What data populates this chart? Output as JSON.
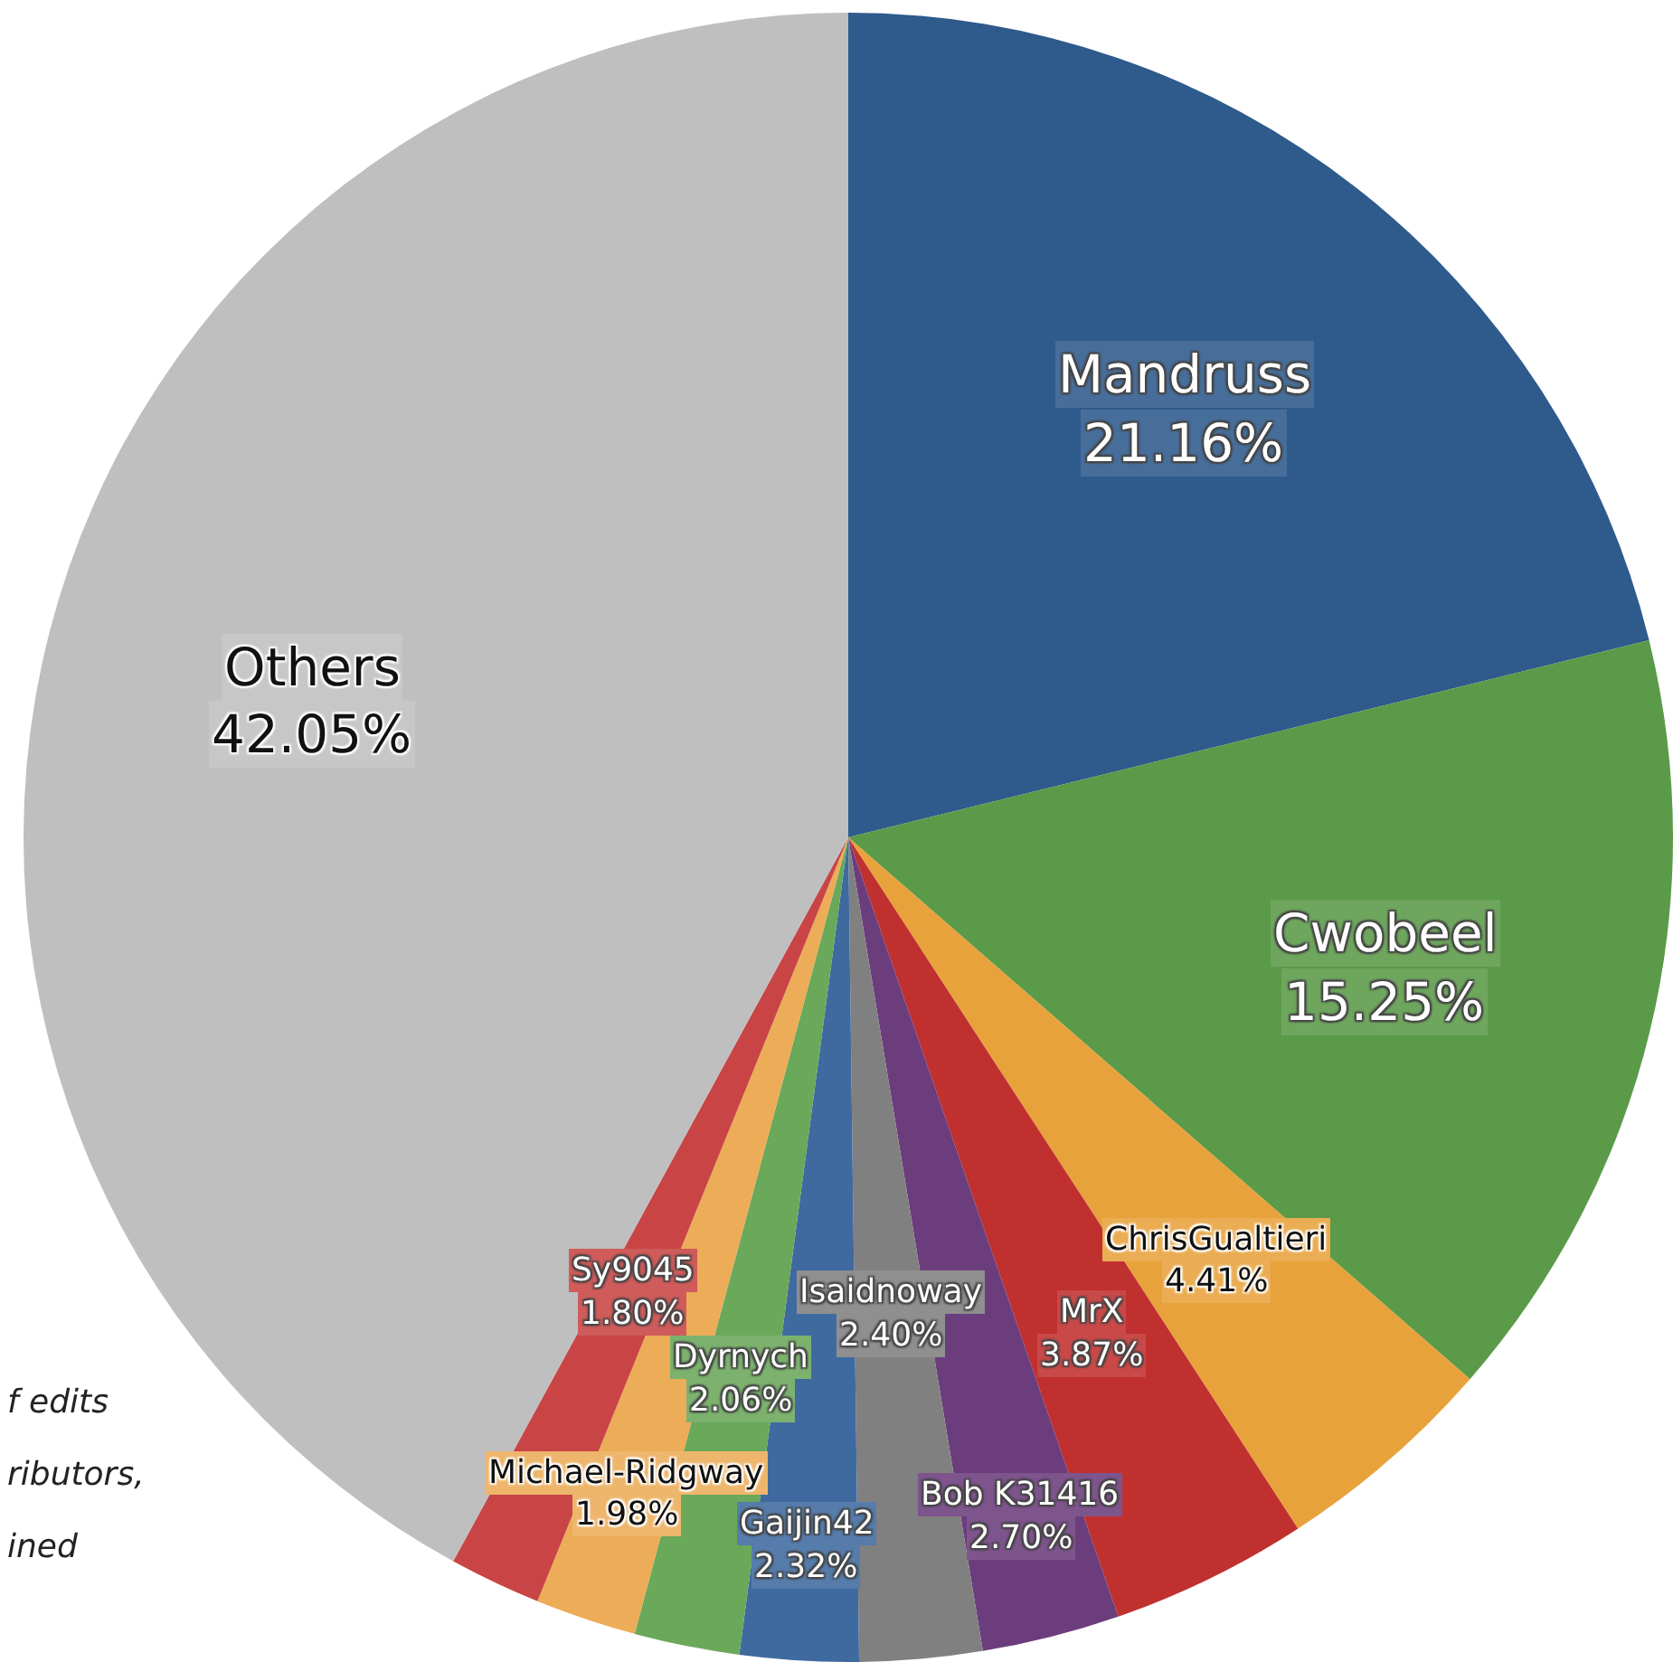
{
  "chart_data": {
    "type": "pie",
    "categories": [
      "Mandruss",
      "Cwobeel",
      "ChrisGualtieri",
      "MrX",
      "Bob K31416",
      "Isaidnoway",
      "Gaijin42",
      "Dyrnych",
      "Michael-Ridgway",
      "Sy9045",
      "Others"
    ],
    "values": [
      21.16,
      15.25,
      4.41,
      3.87,
      2.7,
      2.4,
      2.32,
      2.06,
      1.98,
      1.8,
      42.05
    ],
    "value_labels": [
      "21.16%",
      "15.25%",
      "4.41%",
      "3.87%",
      "2.70%",
      "2.40%",
      "2.32%",
      "2.06%",
      "1.98%",
      "1.80%",
      "42.05%"
    ],
    "colors": [
      "#2e5a8c",
      "#5b9a48",
      "#e8a23c",
      "#c0302f",
      "#6c3d7d",
      "#808080",
      "#3f6aa0",
      "#6aa85a",
      "#ecac58",
      "#c94545",
      "#bfbfbf"
    ],
    "annotations": [
      "f edits",
      "ributors,",
      "ined"
    ]
  }
}
